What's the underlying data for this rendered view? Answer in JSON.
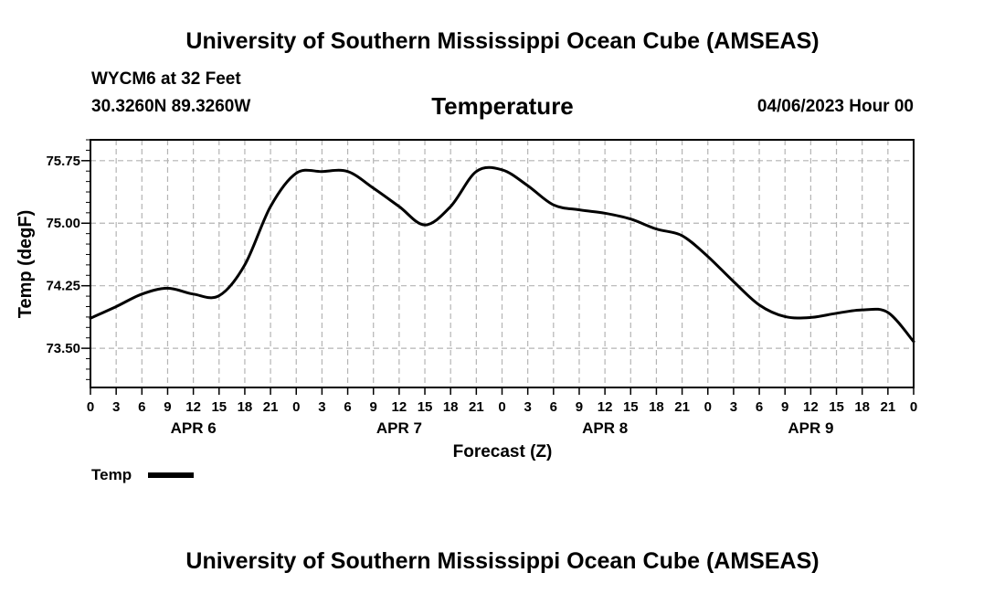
{
  "header": {
    "title_top": "University of Southern Mississippi Ocean Cube (AMSEAS)",
    "station": "WYCM6 at 32 Feet",
    "coords": "30.3260N  89.3260W",
    "date": "04/06/2023 Hour 00",
    "title_bottom": "University of Southern Mississippi Ocean Cube (AMSEAS)"
  },
  "chart_data": {
    "type": "line",
    "title": "Temperature",
    "xlabel": "Forecast (Z)",
    "ylabel": "Temp (degF)",
    "ylim": [
      73.03,
      76.0
    ],
    "xlim": [
      0,
      96
    ],
    "grid": true,
    "y_ticks": [
      73.5,
      74.25,
      75.0,
      75.75
    ],
    "y_tick_labels": [
      "73.50",
      "74.25",
      "75.00",
      "75.75"
    ],
    "x_ticks": [
      0,
      3,
      6,
      9,
      12,
      15,
      18,
      21,
      24,
      27,
      30,
      33,
      36,
      39,
      42,
      45,
      48,
      51,
      54,
      57,
      60,
      63,
      66,
      69,
      72,
      75,
      78,
      81,
      84,
      87,
      90,
      93,
      96
    ],
    "x_tick_labels": [
      "0",
      "3",
      "6",
      "9",
      "12",
      "15",
      "18",
      "21",
      "0",
      "3",
      "6",
      "9",
      "12",
      "15",
      "18",
      "21",
      "0",
      "3",
      "6",
      "9",
      "12",
      "15",
      "18",
      "21",
      "0",
      "3",
      "6",
      "9",
      "12",
      "15",
      "18",
      "21",
      "0"
    ],
    "day_labels": [
      {
        "label": "APR 6",
        "hour": 12
      },
      {
        "label": "APR 7",
        "hour": 36
      },
      {
        "label": "APR 8",
        "hour": 60
      },
      {
        "label": "APR 9",
        "hour": 84
      }
    ],
    "legend": "top-left below axis",
    "series": [
      {
        "name": "Temp",
        "color": "#000000",
        "x": [
          0,
          3,
          6,
          9,
          12,
          15,
          18,
          21,
          24,
          27,
          30,
          33,
          36,
          39,
          42,
          45,
          48,
          51,
          54,
          57,
          60,
          63,
          66,
          69,
          72,
          75,
          78,
          81,
          84,
          87,
          90,
          93,
          96
        ],
        "values": [
          73.86,
          74.0,
          74.15,
          74.22,
          74.15,
          74.13,
          74.5,
          75.2,
          75.6,
          75.62,
          75.62,
          75.42,
          75.2,
          74.98,
          75.2,
          75.62,
          75.64,
          75.45,
          75.22,
          75.16,
          75.12,
          75.05,
          74.93,
          74.85,
          74.6,
          74.3,
          74.02,
          73.88,
          73.87,
          73.92,
          73.96,
          73.93,
          73.58
        ]
      }
    ]
  }
}
